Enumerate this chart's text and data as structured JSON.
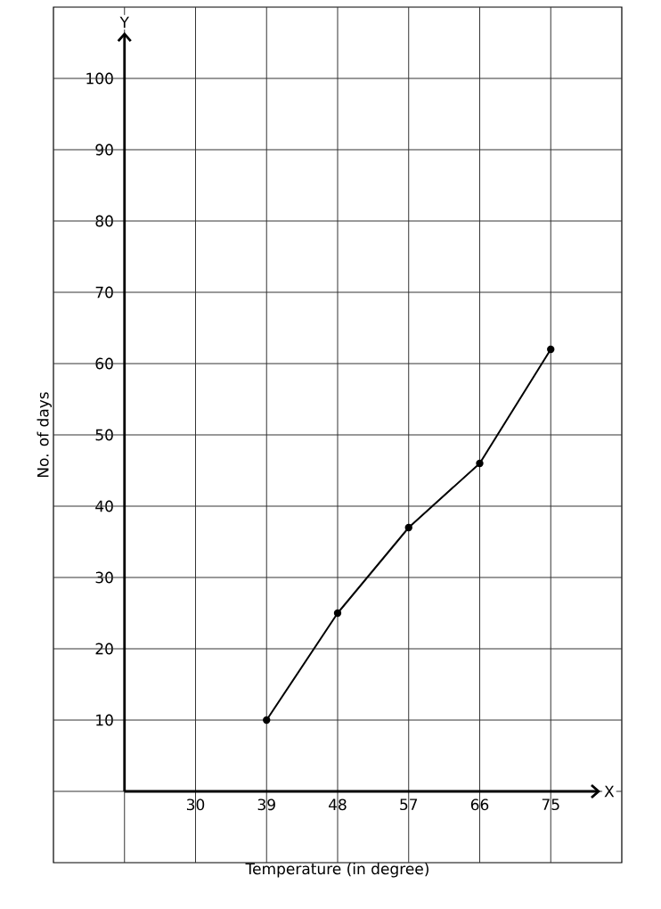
{
  "chart_data": {
    "type": "line",
    "xlabel": "Temperature (in degree)",
    "ylabel": "No. of days",
    "x": [
      39,
      48,
      57,
      66,
      75
    ],
    "series": [
      {
        "color": "#000000",
        "values": [
          10,
          25,
          37,
          46,
          62
        ]
      }
    ],
    "xlim": [
      12,
      84
    ],
    "ylim": [
      -10,
      110
    ],
    "xticks": [
      30,
      39,
      48,
      57,
      66,
      75
    ],
    "yticks": [
      10,
      20,
      30,
      40,
      50,
      60,
      70,
      80,
      90,
      100
    ],
    "grid": true,
    "marker": "circle",
    "line_style": "solid",
    "annotations": [
      "X",
      "Y"
    ]
  }
}
